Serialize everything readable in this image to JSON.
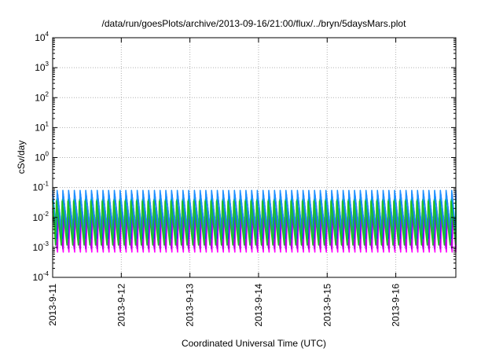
{
  "chart_data": {
    "type": "line",
    "title": "/data/run/goesPlots/archive/2013-09-16/21:00/flux/../bryn/5daysMars.plot",
    "xlabel": "Coordinated Universal Time (UTC)",
    "ylabel": "cSv/day",
    "yscale": "log",
    "ylim": [
      0.0001,
      10000
    ],
    "y_ticks": [
      {
        "base": "10",
        "exp": "-4",
        "value": 0.0001
      },
      {
        "base": "10",
        "exp": "-3",
        "value": 0.001
      },
      {
        "base": "10",
        "exp": "-2",
        "value": 0.01
      },
      {
        "base": "10",
        "exp": "-1",
        "value": 0.1
      },
      {
        "base": "10",
        "exp": "0",
        "value": 1
      },
      {
        "base": "10",
        "exp": "1",
        "value": 10
      },
      {
        "base": "10",
        "exp": "2",
        "value": 100
      },
      {
        "base": "10",
        "exp": "3",
        "value": 1000
      },
      {
        "base": "10",
        "exp": "4",
        "value": 10000
      }
    ],
    "xlim": [
      "2013-09-11T00:00",
      "2013-09-16T21:00"
    ],
    "x_ticks": [
      "2013-9-11",
      "2013-9-12",
      "2013-9-13",
      "2013-9-14",
      "2013-9-15",
      "2013-9-16"
    ],
    "grid": true,
    "legend": "none",
    "oscillation_period_hours": 2,
    "series": [
      {
        "color": "#ff00ff",
        "peak": 0.016,
        "trough": 0.0007
      },
      {
        "color": "#b000e0",
        "peak": 0.02,
        "trough": 0.0009
      },
      {
        "color": "#2020ff",
        "peak": 0.06,
        "trough": 0.002
      },
      {
        "color": "#1e90ff",
        "peak": 0.08,
        "trough": 0.003
      },
      {
        "color": "#00b0a0",
        "peak": 0.04,
        "trough": 0.0015
      },
      {
        "color": "#20c020",
        "peak": 0.035,
        "trough": 0.0012
      }
    ]
  }
}
